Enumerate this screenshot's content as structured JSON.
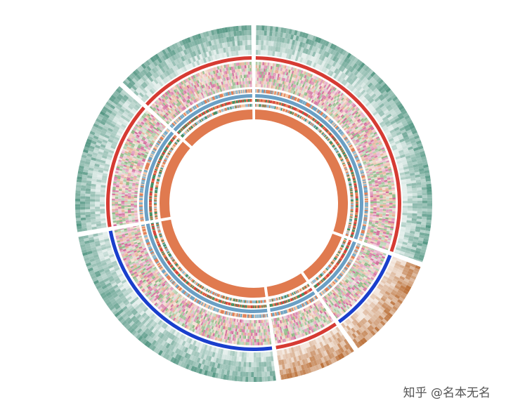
{
  "watermark": "知乎 @名本无名",
  "chart_data": {
    "type": "circular-heatmap",
    "title": "",
    "sectors": [
      {
        "name": "",
        "start_deg": 0,
        "end_deg": 110
      },
      {
        "name": "",
        "start_deg": 110,
        "end_deg": 145
      },
      {
        "name": "",
        "start_deg": 145,
        "end_deg": 172
      },
      {
        "name": "",
        "start_deg": 172,
        "end_deg": 260
      },
      {
        "name": "",
        "start_deg": 260,
        "end_deg": 312
      },
      {
        "name": "",
        "start_deg": 312,
        "end_deg": 360
      }
    ],
    "tracks": [
      {
        "name": "",
        "kind": "heatmap",
        "colors": [
          "#4f9480",
          "#b86a30"
        ],
        "pattern": [
          "teal",
          "copper",
          "copper",
          "teal",
          "teal",
          "teal"
        ]
      },
      {
        "name": "",
        "kind": "band",
        "colors": [
          "#d63b33",
          "#1a3fcc"
        ],
        "pattern": [
          "red",
          "blue",
          "red",
          "blue",
          "red",
          "red"
        ]
      },
      {
        "name": "",
        "kind": "heatmap",
        "colors": [
          "#c94f86",
          "#78a86b",
          "#e0a080"
        ]
      },
      {
        "name": "",
        "kind": "categorical",
        "colors": [
          "#e07a4f",
          "#f2c2a0",
          "#8fb8cc",
          "#6aa0c0"
        ]
      },
      {
        "name": "",
        "kind": "band",
        "colors": [
          "#6a9fc4"
        ]
      },
      {
        "name": "",
        "kind": "categorical",
        "colors": [
          "#3e8a5a",
          "#d63b33",
          "#e07a4f"
        ]
      },
      {
        "name": "",
        "kind": "categorical",
        "colors": [
          "#8fb8cc",
          "#f2c2a0",
          "#3e8a5a",
          "#e07a4f"
        ]
      },
      {
        "name": "",
        "kind": "band",
        "colors": [
          "#e07a4f"
        ]
      }
    ],
    "grid": false,
    "legend": "none"
  },
  "colors": {
    "teal": "#4f9480",
    "copper": "#b86a30",
    "red": "#d63b33",
    "blue": "#1a3fcc",
    "orange": "#e07a4f"
  }
}
